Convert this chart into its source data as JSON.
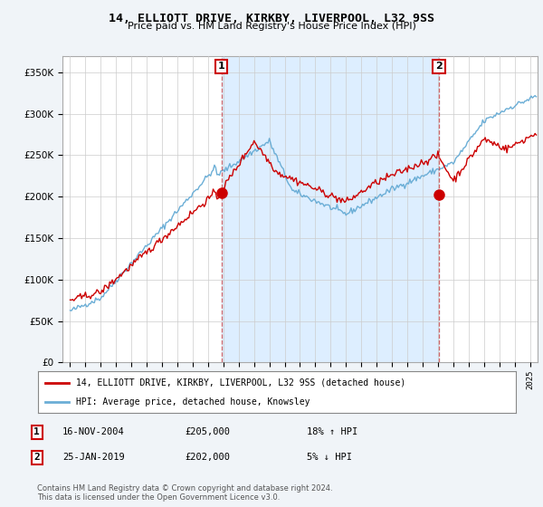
{
  "title": "14, ELLIOTT DRIVE, KIRKBY, LIVERPOOL, L32 9SS",
  "subtitle": "Price paid vs. HM Land Registry's House Price Index (HPI)",
  "legend_line1": "14, ELLIOTT DRIVE, KIRKBY, LIVERPOOL, L32 9SS (detached house)",
  "legend_line2": "HPI: Average price, detached house, Knowsley",
  "annotation1_date": "16-NOV-2004",
  "annotation1_price": "£205,000",
  "annotation1_hpi": "18% ↑ HPI",
  "annotation2_date": "25-JAN-2019",
  "annotation2_price": "£202,000",
  "annotation2_hpi": "5% ↓ HPI",
  "footer": "Contains HM Land Registry data © Crown copyright and database right 2024.\nThis data is licensed under the Open Government Licence v3.0.",
  "sale1_year": 2004.88,
  "sale1_price": 205000,
  "sale2_year": 2019.07,
  "sale2_price": 202000,
  "ylim": [
    0,
    370000
  ],
  "xlim_start": 1994.5,
  "xlim_end": 2025.5,
  "hpi_color": "#6baed6",
  "price_color": "#cc0000",
  "shade_color": "#ddeeff",
  "background_color": "#f0f4f8",
  "plot_bg_color": "#ffffff",
  "grid_color": "#cccccc",
  "vline_color": "#cc4444"
}
